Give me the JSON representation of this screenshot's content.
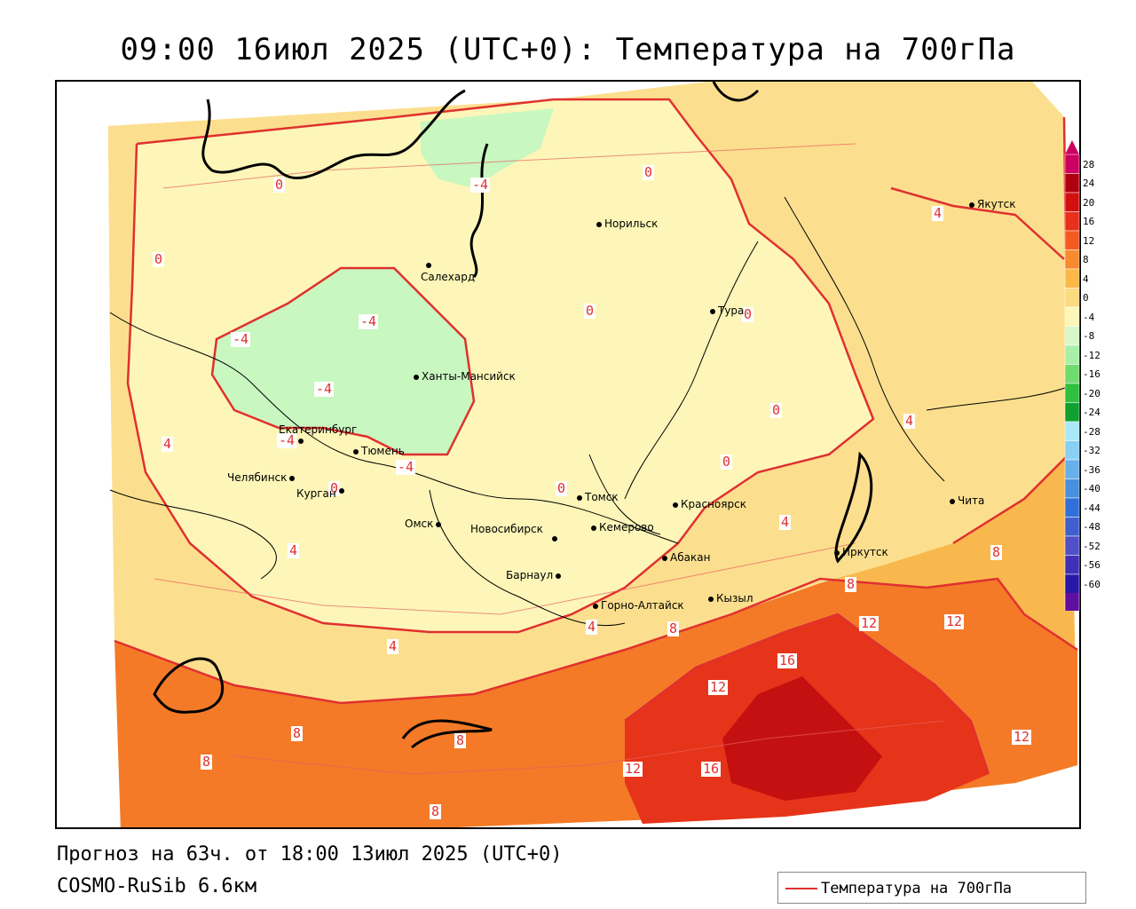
{
  "title": "09:00 16июл 2025 (UTC+0): Температура на 700гПа",
  "footer": {
    "forecast": "Прогноз на 63ч. от 18:00 13июл 2025 (UTC+0)",
    "model": "COSMO-RuSib 6.6км"
  },
  "legend": {
    "label": "Температура на 700гПа",
    "line_color": "#e03030"
  },
  "colors": {
    "neg8": "#9ef0a8",
    "neg4": "#c8f7c0",
    "zero": "#fbf4b0",
    "pos4": "#fcdf8e",
    "pos8": "#f9b84d",
    "pos12": "#f47a28",
    "pos16": "#e6341a",
    "pos20": "#c41010",
    "contour": "#e03030",
    "border": "#000000"
  },
  "colorbar": {
    "ticks": [
      "28",
      "24",
      "20",
      "16",
      "12",
      "8",
      "4",
      "0",
      "-4",
      "-8",
      "-12",
      "-16",
      "-20",
      "-24",
      "-28",
      "-32",
      "-36",
      "-40",
      "-44",
      "-48",
      "-52",
      "-56",
      "-60"
    ],
    "colors": [
      "#cc0060",
      "#b00010",
      "#d21010",
      "#e8301a",
      "#f45a20",
      "#f88a30",
      "#fbb848",
      "#fcda80",
      "#fdf6b8",
      "#d6f8c8",
      "#a8f0a8",
      "#70dc70",
      "#30c040",
      "#10a030",
      "#a8e8f8",
      "#88d0f4",
      "#68b0ec",
      "#4890e0",
      "#3070d8",
      "#4060d0",
      "#5050c8",
      "#4030b8",
      "#2818a8",
      "#6010a0"
    ]
  },
  "contour_labels": [
    "0",
    "0",
    "0",
    "0",
    "0",
    "0",
    "0",
    "0",
    "0",
    "-4",
    "-4",
    "-4",
    "-4",
    "-4",
    "-4",
    "4",
    "4",
    "4",
    "4",
    "4",
    "4",
    "4",
    "8",
    "8",
    "8",
    "8",
    "8",
    "8",
    "8",
    "12",
    "12",
    "12",
    "12",
    "12",
    "16",
    "16"
  ],
  "cities": [
    "Якутск",
    "Норильск",
    "Салехард",
    "Тура",
    "Ханты-Мансийск",
    "Екатеринбург",
    "Тюмень",
    "Челябинск",
    "Курган",
    "Омск",
    "Томск",
    "Красноярск",
    "Новосибирск",
    "Кемерово",
    "Барнаул",
    "Абакан",
    "Иркутск",
    "Чита",
    "Горно-Алтайск",
    "Кызыл"
  ]
}
